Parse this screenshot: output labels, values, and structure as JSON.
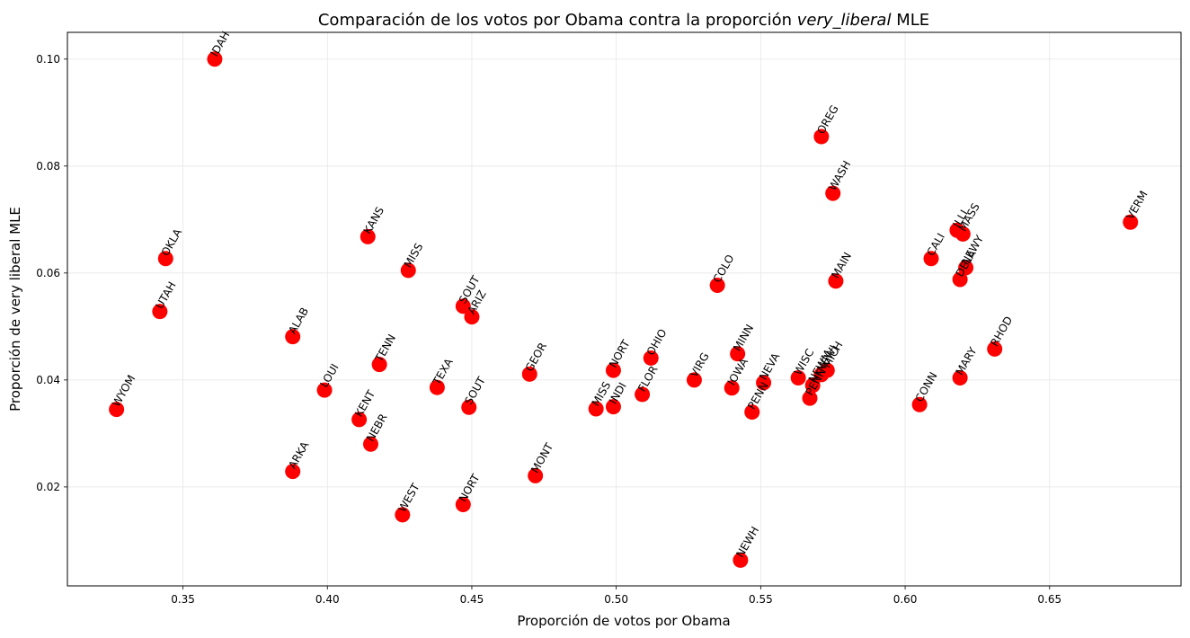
{
  "chart_data": {
    "type": "scatter",
    "title_prefix": "Comparación de los votos por Obama contra la proporción ",
    "title_italic": "very_liberal",
    "title_suffix": " MLE",
    "xlabel": "Proporción de votos por Obama",
    "ylabel": "Proporción de very liberal MLE",
    "xlim": [
      0.31,
      0.6955
    ],
    "ylim": [
      0.0015,
      0.105
    ],
    "xticks": [
      0.35,
      0.4,
      0.45,
      0.5,
      0.55,
      0.6,
      0.65
    ],
    "xtick_labels": [
      "0.35",
      "0.40",
      "0.45",
      "0.50",
      "0.55",
      "0.60",
      "0.65"
    ],
    "yticks": [
      0.02,
      0.04,
      0.06,
      0.08,
      0.1
    ],
    "ytick_labels": [
      "0.02",
      "0.04",
      "0.06",
      "0.08",
      "0.10"
    ],
    "grid": true,
    "marker_color": "#ff0000",
    "points": [
      {
        "label": "IDAH",
        "x": 0.361,
        "y": 0.1
      },
      {
        "label": "OREG",
        "x": 0.571,
        "y": 0.0855
      },
      {
        "label": "WASH",
        "x": 0.575,
        "y": 0.0749
      },
      {
        "label": "VERM",
        "x": 0.678,
        "y": 0.0695
      },
      {
        "label": "KANS",
        "x": 0.414,
        "y": 0.0668
      },
      {
        "label": "ILLI",
        "x": 0.618,
        "y": 0.068
      },
      {
        "label": "MASS",
        "x": 0.62,
        "y": 0.0673
      },
      {
        "label": "OKLA",
        "x": 0.344,
        "y": 0.0627
      },
      {
        "label": "CALI",
        "x": 0.609,
        "y": 0.0627
      },
      {
        "label": "NEWY",
        "x": 0.621,
        "y": 0.061
      },
      {
        "label": "DELA",
        "x": 0.619,
        "y": 0.0588
      },
      {
        "label": "MISS",
        "x": 0.428,
        "y": 0.0605
      },
      {
        "label": "MAIN",
        "x": 0.576,
        "y": 0.0585
      },
      {
        "label": "COLO",
        "x": 0.535,
        "y": 0.0577
      },
      {
        "label": "SOUT",
        "x": 0.447,
        "y": 0.0538
      },
      {
        "label": "ARIZ",
        "x": 0.45,
        "y": 0.0518
      },
      {
        "label": "UTAH",
        "x": 0.342,
        "y": 0.0528
      },
      {
        "label": "ALAB",
        "x": 0.388,
        "y": 0.0481
      },
      {
        "label": "RHOD",
        "x": 0.631,
        "y": 0.0458
      },
      {
        "label": "MINN",
        "x": 0.542,
        "y": 0.0449
      },
      {
        "label": "OHIO",
        "x": 0.512,
        "y": 0.0441
      },
      {
        "label": "TENN",
        "x": 0.418,
        "y": 0.0429
      },
      {
        "label": "NORT",
        "x": 0.499,
        "y": 0.0418
      },
      {
        "label": "GEOR",
        "x": 0.47,
        "y": 0.0411
      },
      {
        "label": "MICH",
        "x": 0.573,
        "y": 0.0418
      },
      {
        "label": "NEWJ",
        "x": 0.571,
        "y": 0.041
      },
      {
        "label": "MARY",
        "x": 0.619,
        "y": 0.0404
      },
      {
        "label": "WISC",
        "x": 0.563,
        "y": 0.0404
      },
      {
        "label": "VIRG",
        "x": 0.527,
        "y": 0.04
      },
      {
        "label": "NEVA",
        "x": 0.551,
        "y": 0.0395
      },
      {
        "label": "NEWM",
        "x": 0.568,
        "y": 0.039
      },
      {
        "label": "TEXA",
        "x": 0.438,
        "y": 0.0386
      },
      {
        "label": "IOWA",
        "x": 0.54,
        "y": 0.0385
      },
      {
        "label": "LOUI",
        "x": 0.399,
        "y": 0.0381
      },
      {
        "label": "FLOR",
        "x": 0.509,
        "y": 0.0373
      },
      {
        "label": "PENN",
        "x": 0.567,
        "y": 0.0366
      },
      {
        "label": "CONN",
        "x": 0.605,
        "y": 0.0354
      },
      {
        "label": "INDI",
        "x": 0.499,
        "y": 0.035
      },
      {
        "label": "SOUT",
        "x": 0.449,
        "y": 0.0349
      },
      {
        "label": "MISS",
        "x": 0.493,
        "y": 0.0346
      },
      {
        "label": "WYOM",
        "x": 0.327,
        "y": 0.0345
      },
      {
        "label": "PENN",
        "x": 0.547,
        "y": 0.034
      },
      {
        "label": "KENT",
        "x": 0.411,
        "y": 0.0326
      },
      {
        "label": "NEBR",
        "x": 0.415,
        "y": 0.028
      },
      {
        "label": "ARKA",
        "x": 0.388,
        "y": 0.0229
      },
      {
        "label": "MONT",
        "x": 0.472,
        "y": 0.0221
      },
      {
        "label": "NORT",
        "x": 0.447,
        "y": 0.0167
      },
      {
        "label": "WEST",
        "x": 0.426,
        "y": 0.0148
      },
      {
        "label": "NEWH",
        "x": 0.543,
        "y": 0.0063
      }
    ]
  }
}
